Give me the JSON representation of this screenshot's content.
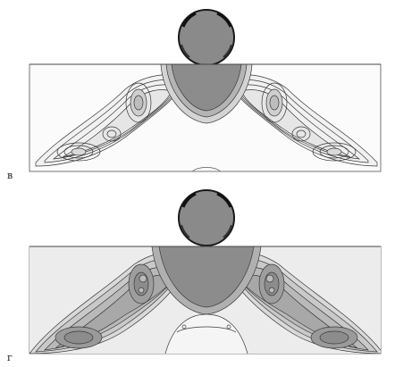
{
  "panels": [
    {
      "label": "в"
    },
    {
      "label": "г"
    }
  ],
  "colors": {
    "background": "#ffffff",
    "slab_fill": "#fbfbfb",
    "ball_fill": "#8a8a8a",
    "ball_rim": "#1a1a1a",
    "contour_line": "#3a3a3a",
    "dense_fill": "#8c8c8c",
    "mid_fill": "#c9c9c9",
    "light_fill": "#e6e6e6"
  }
}
